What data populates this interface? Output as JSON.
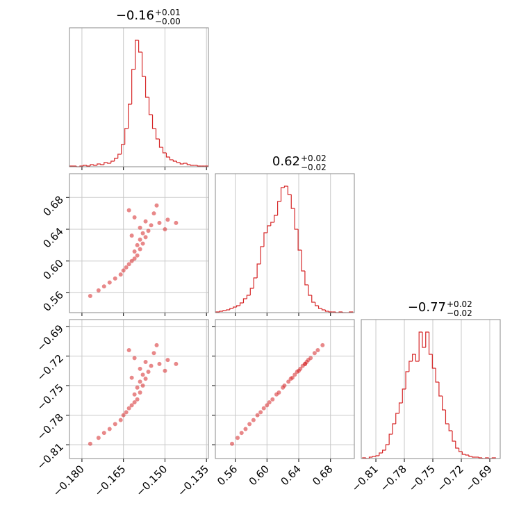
{
  "chart_data": [
    {
      "type": "histogram",
      "color": "#d62728",
      "grid": true,
      "xticklabels": false,
      "yticklabels": false,
      "title": {
        "value": "−0.16",
        "upper": "+0.01",
        "lower": "−0.00"
      },
      "bins": [
        -0.1845,
        -0.18325,
        -0.182,
        -0.18075,
        -0.1795,
        -0.17825,
        -0.177,
        -0.17575,
        -0.1745,
        -0.17325,
        -0.172,
        -0.17075,
        -0.1695,
        -0.16825,
        -0.167,
        -0.16575,
        -0.1645,
        -0.16325,
        -0.162,
        -0.16075,
        -0.1595,
        -0.15825,
        -0.157,
        -0.15575,
        -0.1545,
        -0.15325,
        -0.152,
        -0.15075,
        -0.1495,
        -0.14825,
        -0.147,
        -0.14575,
        -0.1445,
        -0.14325,
        -0.142,
        -0.14075,
        -0.1395,
        -0.13825,
        -0.137,
        -0.13575,
        -0.1345
      ],
      "values": [
        1,
        1,
        0,
        1,
        2,
        1,
        3,
        2,
        4,
        3,
        6,
        5,
        8,
        12,
        18,
        32,
        55,
        90,
        140,
        182,
        165,
        130,
        100,
        75,
        55,
        40,
        28,
        20,
        14,
        10,
        8,
        6,
        4,
        5,
        3,
        2,
        2,
        1,
        1,
        1
      ],
      "xlim": [
        -0.1845,
        -0.1343
      ],
      "ylim": [
        0,
        200
      ],
      "xticks": [
        {
          "value": -0.18,
          "label": "−0.180"
        },
        {
          "value": -0.165,
          "label": "−0.165"
        },
        {
          "value": -0.15,
          "label": "−0.150"
        },
        {
          "value": -0.135,
          "label": "−0.135"
        }
      ]
    },
    {
      "type": "scatter",
      "color": "#d62728",
      "grid": true,
      "xticklabels": false,
      "yticklabels": true,
      "x": [
        -0.177,
        -0.174,
        -0.172,
        -0.17,
        -0.168,
        -0.166,
        -0.165,
        -0.164,
        -0.163,
        -0.162,
        -0.161,
        -0.16,
        -0.161,
        -0.159,
        -0.16,
        -0.158,
        -0.159,
        -0.157,
        -0.158,
        -0.156,
        -0.159,
        -0.155,
        -0.157,
        -0.152,
        -0.161,
        -0.154,
        -0.149,
        -0.163,
        -0.153,
        -0.146,
        -0.162,
        -0.15
      ],
      "y": [
        0.556,
        0.563,
        0.568,
        0.573,
        0.578,
        0.583,
        0.588,
        0.592,
        0.596,
        0.6,
        0.603,
        0.607,
        0.612,
        0.615,
        0.62,
        0.622,
        0.627,
        0.63,
        0.635,
        0.638,
        0.642,
        0.645,
        0.65,
        0.648,
        0.655,
        0.66,
        0.652,
        0.664,
        0.67,
        0.648,
        0.632,
        0.64
      ],
      "xlim": [
        -0.1845,
        -0.1343
      ],
      "ylim": [
        0.535,
        0.71
      ],
      "xticks": [
        {
          "value": -0.18,
          "label": "−0.180"
        },
        {
          "value": -0.165,
          "label": "−0.165"
        },
        {
          "value": -0.15,
          "label": "−0.150"
        },
        {
          "value": -0.135,
          "label": "−0.135"
        }
      ],
      "yticks": [
        0.56,
        {
          "value": 0.6,
          "label": "0.60"
        },
        0.64,
        0.68
      ]
    },
    {
      "type": "histogram",
      "color": "#d62728",
      "grid": true,
      "xticklabels": false,
      "yticklabels": false,
      "title": {
        "value": "0.62",
        "upper": "+0.02",
        "lower": "−0.02"
      },
      "bins": [
        0.536,
        0.5403,
        0.5446,
        0.5489,
        0.5532,
        0.5575,
        0.5618,
        0.5661,
        0.5704,
        0.5747,
        0.579,
        0.5833,
        0.5876,
        0.5919,
        0.5962,
        0.6005,
        0.6048,
        0.6091,
        0.6134,
        0.6177,
        0.622,
        0.6263,
        0.6306,
        0.6349,
        0.6392,
        0.6435,
        0.6478,
        0.6521,
        0.6564,
        0.6607,
        0.665,
        0.6693,
        0.6736,
        0.6779,
        0.6822,
        0.6865,
        0.6908,
        0.6951,
        0.6994,
        0.7037,
        0.708
      ],
      "values": [
        1,
        2,
        3,
        4,
        6,
        8,
        10,
        14,
        20,
        25,
        35,
        50,
        70,
        95,
        115,
        125,
        130,
        140,
        160,
        180,
        182,
        170,
        150,
        120,
        90,
        60,
        40,
        25,
        15,
        10,
        6,
        4,
        2,
        1,
        1,
        0,
        1,
        0,
        0,
        1
      ],
      "xlim": [
        0.535,
        0.71
      ],
      "ylim": [
        0,
        200
      ],
      "xticks": [
        0.56,
        {
          "value": 0.6,
          "label": "0.60"
        },
        0.64,
        0.68
      ]
    },
    {
      "type": "scatter",
      "color": "#d62728",
      "grid": true,
      "xticklabels": true,
      "yticklabels": true,
      "x": [
        -0.177,
        -0.174,
        -0.172,
        -0.17,
        -0.168,
        -0.166,
        -0.165,
        -0.164,
        -0.163,
        -0.162,
        -0.161,
        -0.16,
        -0.161,
        -0.159,
        -0.16,
        -0.158,
        -0.159,
        -0.157,
        -0.158,
        -0.156,
        -0.159,
        -0.155,
        -0.157,
        -0.152,
        -0.161,
        -0.154,
        -0.149,
        -0.163,
        -0.153,
        -0.146,
        -0.162,
        -0.15
      ],
      "y": [
        -0.809,
        -0.803,
        -0.798,
        -0.794,
        -0.789,
        -0.785,
        -0.78,
        -0.777,
        -0.773,
        -0.77,
        -0.767,
        -0.764,
        -0.759,
        -0.757,
        -0.752,
        -0.75,
        -0.746,
        -0.743,
        -0.739,
        -0.736,
        -0.733,
        -0.73,
        -0.726,
        -0.728,
        -0.722,
        -0.717,
        -0.724,
        -0.714,
        -0.709,
        -0.728,
        -0.742,
        -0.735
      ],
      "xlim": [
        -0.1845,
        -0.1343
      ],
      "ylim": [
        -0.824,
        -0.683
      ],
      "xticks": [
        {
          "value": -0.18,
          "label": "−0.180"
        },
        {
          "value": -0.165,
          "label": "−0.165"
        },
        {
          "value": -0.15,
          "label": "−0.150"
        },
        {
          "value": -0.135,
          "label": "−0.135"
        }
      ],
      "yticks": [
        {
          "value": -0.81,
          "label": "−0.81"
        },
        {
          "value": -0.78,
          "label": "−0.78"
        },
        {
          "value": -0.75,
          "label": "−0.75"
        },
        {
          "value": -0.72,
          "label": "−0.72"
        },
        {
          "value": -0.69,
          "label": "−0.69"
        }
      ]
    },
    {
      "type": "scatter",
      "color": "#d62728",
      "grid": true,
      "xticklabels": true,
      "yticklabels": false,
      "x": [
        0.556,
        0.563,
        0.568,
        0.573,
        0.578,
        0.583,
        0.588,
        0.592,
        0.596,
        0.6,
        0.603,
        0.607,
        0.612,
        0.615,
        0.62,
        0.622,
        0.627,
        0.63,
        0.635,
        0.638,
        0.642,
        0.645,
        0.65,
        0.648,
        0.655,
        0.66,
        0.652,
        0.664,
        0.67,
        0.648,
        0.632,
        0.64
      ],
      "y": [
        -0.809,
        -0.803,
        -0.798,
        -0.794,
        -0.789,
        -0.785,
        -0.78,
        -0.777,
        -0.773,
        -0.77,
        -0.767,
        -0.764,
        -0.759,
        -0.757,
        -0.752,
        -0.75,
        -0.746,
        -0.743,
        -0.739,
        -0.736,
        -0.733,
        -0.73,
        -0.726,
        -0.728,
        -0.722,
        -0.717,
        -0.724,
        -0.714,
        -0.709,
        -0.728,
        -0.742,
        -0.735
      ],
      "xlim": [
        0.535,
        0.71
      ],
      "ylim": [
        -0.824,
        -0.683
      ],
      "xticks": [
        0.56,
        {
          "value": 0.6,
          "label": "0.60"
        },
        0.64,
        0.68
      ],
      "yticks": [
        {
          "value": -0.81,
          "label": "−0.81"
        },
        {
          "value": -0.78,
          "label": "−0.78"
        },
        {
          "value": -0.75,
          "label": "−0.75"
        },
        {
          "value": -0.72,
          "label": "−0.72"
        },
        {
          "value": -0.69,
          "label": "−0.69"
        }
      ]
    },
    {
      "type": "histogram",
      "color": "#d62728",
      "grid": true,
      "xticklabels": true,
      "yticklabels": false,
      "title": {
        "value": "−0.77",
        "upper": "+0.02",
        "lower": "−0.02"
      },
      "bins": [
        -0.824,
        -0.8205,
        -0.817,
        -0.8135,
        -0.81,
        -0.8065,
        -0.803,
        -0.7995,
        -0.796,
        -0.7925,
        -0.789,
        -0.7855,
        -0.782,
        -0.7785,
        -0.775,
        -0.7715,
        -0.768,
        -0.7645,
        -0.761,
        -0.7575,
        -0.754,
        -0.7505,
        -0.747,
        -0.7435,
        -0.74,
        -0.7365,
        -0.733,
        -0.7295,
        -0.726,
        -0.7225,
        -0.719,
        -0.7155,
        -0.712,
        -0.7085,
        -0.705,
        -0.7015,
        -0.698,
        -0.6945,
        -0.691,
        -0.6875,
        -0.684
      ],
      "values": [
        1,
        0,
        2,
        3,
        4,
        8,
        12,
        20,
        35,
        50,
        65,
        80,
        100,
        125,
        140,
        150,
        140,
        182,
        160,
        182,
        150,
        130,
        110,
        90,
        70,
        50,
        40,
        25,
        15,
        10,
        6,
        5,
        3,
        2,
        2,
        1,
        0,
        1,
        0,
        1
      ],
      "xlim": [
        -0.8254,
        -0.679
      ],
      "ylim": [
        0,
        200
      ],
      "xticks": [
        {
          "value": -0.81,
          "label": "−0.81"
        },
        {
          "value": -0.78,
          "label": "−0.78"
        },
        {
          "value": -0.75,
          "label": "−0.75"
        },
        {
          "value": -0.72,
          "label": "−0.72"
        },
        {
          "value": -0.69,
          "label": "−0.69"
        }
      ]
    }
  ]
}
